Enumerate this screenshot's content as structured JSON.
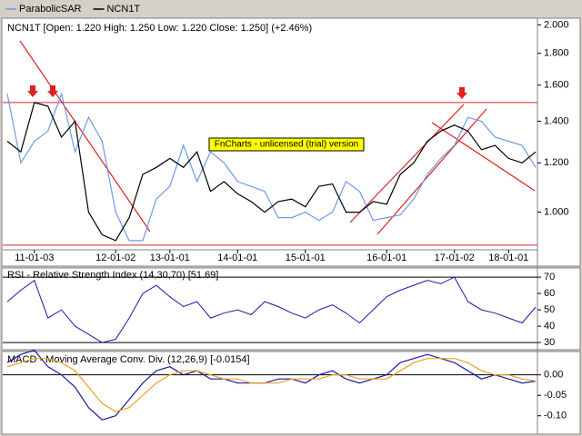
{
  "legend": [
    "ParabolicSAR",
    "NCN1T"
  ],
  "watermark": "FnCharts - unlicensed (trial) version",
  "chart_data": [
    {
      "type": "line",
      "title": "NCN1T [Open: 1.220  High: 1.250  Low: 1.220  Close: 1.250] (+2.46%)",
      "categories": [
        null,
        null,
        "11-01-03",
        null,
        null,
        null,
        null,
        null,
        "12-01-02",
        null,
        null,
        null,
        "13-01-01",
        null,
        null,
        null,
        null,
        "14-01-01",
        null,
        null,
        null,
        null,
        "15-01-01",
        null,
        null,
        null,
        null,
        null,
        "16-01-01",
        null,
        null,
        null,
        null,
        "17-01-02",
        null,
        null,
        null,
        "18-01-01",
        null,
        null
      ],
      "series": [
        {
          "name": "ParabolicSAR",
          "color": "#6a9be8",
          "values": [
            1.55,
            1.2,
            1.3,
            1.35,
            1.55,
            1.25,
            1.42,
            1.3,
            1.0,
            0.9,
            0.9,
            1.05,
            1.1,
            1.28,
            1.12,
            1.25,
            1.2,
            1.12,
            1.1,
            1.08,
            0.98,
            0.98,
            1.0,
            0.97,
            1.0,
            1.12,
            1.08,
            0.97,
            0.98,
            0.99,
            1.05,
            1.15,
            1.22,
            1.28,
            1.42,
            1.4,
            1.32,
            1.3,
            1.28,
            1.18
          ]
        },
        {
          "name": "NCN1T",
          "color": "#000000",
          "values": [
            1.3,
            1.25,
            1.5,
            1.48,
            1.32,
            1.4,
            1.0,
            0.92,
            0.9,
            0.98,
            1.15,
            1.18,
            1.22,
            1.18,
            1.25,
            1.08,
            1.12,
            1.07,
            1.04,
            1.0,
            1.04,
            1.05,
            1.02,
            1.1,
            1.11,
            1.0,
            1.0,
            1.04,
            1.03,
            1.15,
            1.2,
            1.3,
            1.35,
            1.38,
            1.35,
            1.26,
            1.28,
            1.22,
            1.2,
            1.25
          ]
        }
      ],
      "log_scale": true,
      "ylim": [
        0.87,
        2.05
      ],
      "yticks": [
        {
          "value": 1,
          "label": "1.000"
        },
        {
          "value": 1.2,
          "label": "1.200"
        },
        {
          "value": 1.4,
          "label": "1.400"
        },
        {
          "value": 1.6,
          "label": "1.600"
        },
        {
          "value": 1.8,
          "label": "1.800"
        },
        {
          "value": 2,
          "label": "2.000"
        }
      ],
      "reference_lines": [
        1.5,
        0.885
      ],
      "reference_color": "#e02020"
    },
    {
      "type": "line",
      "title": "RSI - Relative Strength Index (14,30,70) [51.69]",
      "color": "#1a1aa0",
      "values": [
        55,
        62,
        68,
        45,
        50,
        40,
        35,
        30,
        32,
        45,
        60,
        65,
        58,
        52,
        55,
        45,
        48,
        50,
        47,
        55,
        52,
        48,
        45,
        50,
        53,
        48,
        42,
        50,
        58,
        62,
        65,
        68,
        66,
        70,
        55,
        50,
        48,
        45,
        42,
        51.69
      ],
      "ylim": [
        25.6,
        75.6
      ],
      "yticks": [
        30,
        40,
        50,
        60,
        70
      ],
      "reference_lines": [
        30,
        70
      ],
      "reference_color": "#000000"
    },
    {
      "type": "line",
      "title": "MACD - Moving Average Conv. Div. (12,26,9) [-0.0154]",
      "series": [
        {
          "color": "#1a1aa0",
          "values": [
            0.03,
            0.05,
            0.06,
            0.02,
            0.0,
            -0.03,
            -0.08,
            -0.11,
            -0.1,
            -0.06,
            -0.02,
            0.01,
            0.02,
            0.0,
            0.01,
            -0.01,
            -0.01,
            -0.02,
            -0.02,
            -0.02,
            -0.01,
            -0.01,
            -0.02,
            0.0,
            0.01,
            -0.01,
            -0.02,
            -0.01,
            0.0,
            0.03,
            0.04,
            0.05,
            0.04,
            0.03,
            0.01,
            -0.01,
            0.0,
            -0.01,
            -0.02,
            -0.0154
          ]
        },
        {
          "color": "#f0a020",
          "values": [
            0.02,
            0.03,
            0.04,
            0.04,
            0.03,
            0.01,
            -0.03,
            -0.07,
            -0.09,
            -0.08,
            -0.05,
            -0.02,
            0.0,
            0.01,
            0.01,
            0.0,
            -0.01,
            -0.01,
            -0.02,
            -0.02,
            -0.02,
            -0.01,
            -0.01,
            -0.01,
            0.0,
            0.0,
            -0.01,
            -0.01,
            -0.01,
            0.01,
            0.03,
            0.04,
            0.04,
            0.04,
            0.03,
            0.01,
            0.0,
            0.0,
            -0.01,
            -0.015
          ]
        }
      ],
      "ylim": [
        -0.145,
        0.057
      ],
      "yticks": [
        {
          "value": 0,
          "label": "0.00"
        },
        -0.05,
        {
          "value": -0.1,
          "label": "-0.10"
        }
      ],
      "reference_lines": [
        0
      ],
      "reference_color": "#000000"
    }
  ]
}
